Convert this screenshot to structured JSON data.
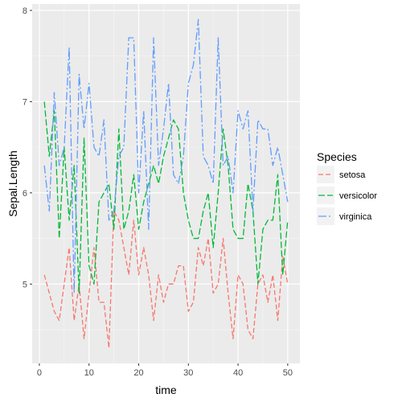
{
  "chart_data": {
    "type": "line",
    "xlabel": "time",
    "ylabel": "Sepal.Length",
    "xlim": [
      -1.45,
      52.45
    ],
    "ylim": [
      4.13,
      8.07
    ],
    "xticks": [
      0,
      10,
      20,
      30,
      40,
      50
    ],
    "yticks": [
      5,
      6,
      7,
      8
    ],
    "grid": true,
    "legend": {
      "title": "Species",
      "position": "right"
    },
    "series": [
      {
        "name": "setosa",
        "color": "#F8766D",
        "dash": "6,3",
        "values": [
          5.1,
          4.9,
          4.7,
          4.6,
          5.0,
          5.4,
          4.6,
          5.0,
          4.4,
          4.9,
          5.4,
          4.8,
          4.8,
          4.3,
          5.8,
          5.7,
          5.4,
          5.1,
          5.7,
          5.1,
          5.4,
          5.1,
          4.6,
          5.1,
          4.8,
          5.0,
          5.0,
          5.2,
          5.2,
          4.7,
          4.8,
          5.4,
          5.2,
          5.5,
          4.9,
          5.0,
          5.5,
          4.9,
          4.4,
          5.1,
          5.0,
          4.5,
          4.4,
          5.0,
          5.1,
          4.8,
          5.1,
          4.6,
          5.3,
          5.0
        ]
      },
      {
        "name": "versicolor",
        "color": "#00BA38",
        "dash": "8,3",
        "values": [
          7.0,
          6.4,
          6.9,
          5.5,
          6.5,
          5.7,
          6.3,
          4.9,
          6.6,
          5.2,
          5.0,
          5.9,
          6.0,
          6.1,
          5.6,
          6.7,
          5.6,
          5.8,
          6.2,
          5.6,
          5.9,
          6.1,
          6.3,
          6.1,
          6.4,
          6.6,
          6.8,
          6.7,
          6.0,
          5.7,
          5.5,
          5.5,
          5.8,
          6.0,
          5.4,
          6.0,
          6.7,
          6.3,
          5.6,
          5.5,
          5.5,
          6.1,
          5.8,
          5.0,
          5.6,
          5.7,
          5.7,
          6.2,
          5.1,
          5.7
        ]
      },
      {
        "name": "virginica",
        "color": "#619CFF",
        "dash": "10,3,2,3",
        "values": [
          6.3,
          5.8,
          7.1,
          6.3,
          6.5,
          7.6,
          4.9,
          7.3,
          6.7,
          7.2,
          6.5,
          6.4,
          6.8,
          5.7,
          5.8,
          6.4,
          6.5,
          7.7,
          7.7,
          6.0,
          6.9,
          5.6,
          7.7,
          6.3,
          6.7,
          7.2,
          6.2,
          6.1,
          6.4,
          7.2,
          7.4,
          7.9,
          6.4,
          6.3,
          6.1,
          7.7,
          6.3,
          6.4,
          6.0,
          6.9,
          6.7,
          6.9,
          5.8,
          6.8,
          6.7,
          6.7,
          6.3,
          6.5,
          6.2,
          5.9
        ]
      }
    ]
  }
}
